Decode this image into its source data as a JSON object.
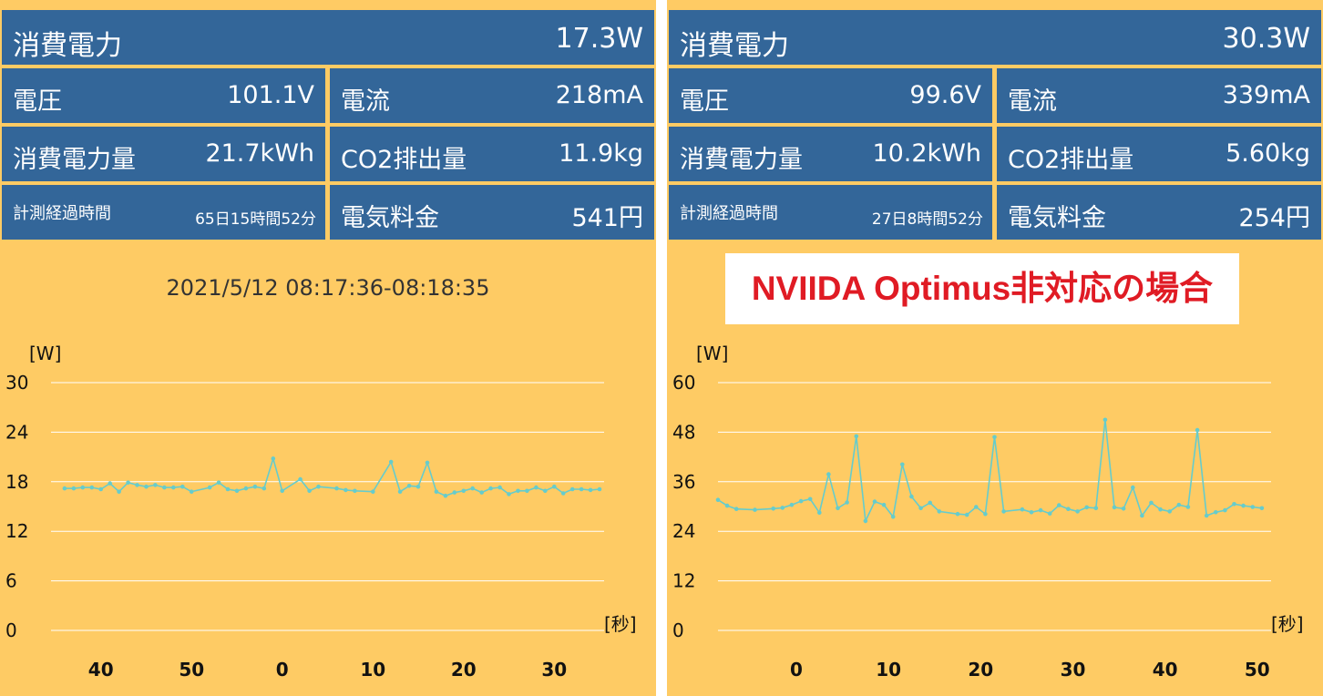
{
  "panels": [
    {
      "power_label": "消費電力",
      "power_value": "17.3W",
      "voltage_label": "電圧",
      "voltage_value": "101.1V",
      "current_label": "電流",
      "current_value": "218mA",
      "energy_label": "消費電力量",
      "energy_value": "21.7kWh",
      "co2_label": "CO2排出量",
      "co2_value": "11.9kg",
      "elapsed_label": "計測経過時間",
      "elapsed_value": "65日15時間52分",
      "cost_label": "電気料金",
      "cost_value": "541円",
      "timestamp": "2021/5/12 08:17:36-08:18:35"
    },
    {
      "power_label": "消費電力",
      "power_value": "30.3W",
      "voltage_label": "電圧",
      "voltage_value": "99.6V",
      "current_label": "電流",
      "current_value": "339mA",
      "energy_label": "消費電力量",
      "energy_value": "10.2kWh",
      "co2_label": "CO2排出量",
      "co2_value": "5.60kg",
      "elapsed_label": "計測経過時間",
      "elapsed_value": "27日8時間52分",
      "cost_label": "電気料金",
      "cost_value": "254円",
      "notice": "NVIIDA Optimus非対応の場合"
    }
  ],
  "colors": {
    "background": "#fecb64",
    "tile": "#336699",
    "line": "#66cccc",
    "notice_text": "#e01b24"
  },
  "chart_data": [
    {
      "type": "line",
      "ylabel": "[W]",
      "xlabel": "[秒]",
      "ylim": [
        0,
        30
      ],
      "yticks": [
        "0",
        "6",
        "12",
        "18",
        "24",
        "30"
      ],
      "xticks": [
        {
          "label": "40",
          "x": 40
        },
        {
          "label": "50",
          "x": 50
        },
        {
          "label": "0",
          "x": 60
        },
        {
          "label": "10",
          "x": 70
        },
        {
          "label": "20",
          "x": 80
        },
        {
          "label": "30",
          "x": 90
        }
      ],
      "xlim": [
        34.5,
        95.5
      ],
      "grid": true,
      "x": [
        36,
        37,
        38,
        39,
        40,
        41,
        42,
        43,
        44,
        45,
        46,
        47,
        48,
        49,
        50,
        52,
        53,
        54,
        55,
        56,
        57,
        58,
        59,
        60,
        62,
        63,
        64,
        66,
        67,
        68,
        70,
        72,
        73,
        74,
        75,
        76,
        77,
        78,
        79,
        80,
        81,
        82,
        83,
        84,
        85,
        86,
        87,
        88,
        89,
        90,
        91,
        92,
        93,
        94,
        95
      ],
      "values": [
        17.2,
        17.2,
        17.3,
        17.3,
        17.1,
        17.8,
        16.8,
        17.9,
        17.6,
        17.4,
        17.6,
        17.3,
        17.3,
        17.4,
        16.8,
        17.3,
        17.9,
        17.1,
        16.9,
        17.2,
        17.4,
        17.2,
        20.8,
        16.9,
        18.3,
        16.9,
        17.4,
        17.2,
        17,
        16.9,
        16.8,
        20.4,
        16.8,
        17.5,
        17.4,
        20.3,
        16.8,
        16.3,
        16.7,
        16.9,
        17.2,
        16.7,
        17.2,
        17.3,
        16.5,
        16.9,
        16.9,
        17.3,
        16.9,
        17.4,
        16.6,
        17.1,
        17.1,
        17,
        17.1
      ]
    },
    {
      "type": "line",
      "ylabel": "[W]",
      "xlabel": "[秒]",
      "ylim": [
        0,
        60
      ],
      "yticks": [
        "0",
        "12",
        "24",
        "36",
        "48",
        "60"
      ],
      "xticks": [
        {
          "label": "0",
          "x": 60
        },
        {
          "label": "10",
          "x": 70
        },
        {
          "label": "20",
          "x": 80
        },
        {
          "label": "30",
          "x": 90
        },
        {
          "label": "40",
          "x": 100
        },
        {
          "label": "50",
          "x": 110
        }
      ],
      "xlim": [
        51.5,
        111.5
      ],
      "grid": true,
      "x": [
        51.5,
        52.5,
        53.5,
        55.5,
        57.5,
        58.5,
        59.5,
        60.5,
        61.5,
        62.5,
        63.5,
        64.5,
        65.5,
        66.5,
        67.5,
        68.5,
        69.5,
        70.5,
        71.5,
        72.5,
        73.5,
        74.5,
        75.5,
        77.5,
        78.5,
        79.5,
        80.5,
        81.5,
        82.5,
        84.5,
        85.5,
        86.5,
        87.5,
        88.5,
        89.5,
        90.5,
        91.5,
        92.5,
        93.5,
        94.5,
        95.5,
        96.5,
        97.5,
        98.5,
        99.5,
        100.5,
        101.5,
        102.5,
        103.5,
        104.5,
        105.5,
        106.5,
        107.5,
        108.5,
        109.5,
        110.5
      ],
      "values": [
        31.6,
        30.2,
        29.4,
        29.2,
        29.5,
        29.7,
        30.4,
        31.3,
        31.8,
        28.5,
        37.8,
        29.6,
        31,
        47,
        26.5,
        31.2,
        30.4,
        27.5,
        40.2,
        32.4,
        29.6,
        30.9,
        28.8,
        28.2,
        28,
        29.9,
        28.2,
        46.8,
        28.8,
        29.3,
        28.6,
        29.1,
        28.3,
        30.3,
        29.4,
        28.8,
        29.8,
        29.6,
        51,
        29.8,
        29.5,
        34.6,
        27.8,
        30.9,
        29.3,
        28.8,
        30.4,
        29.9,
        48.5,
        27.8,
        28.6,
        29.1,
        30.6,
        30.2,
        29.9,
        29.6
      ]
    }
  ]
}
